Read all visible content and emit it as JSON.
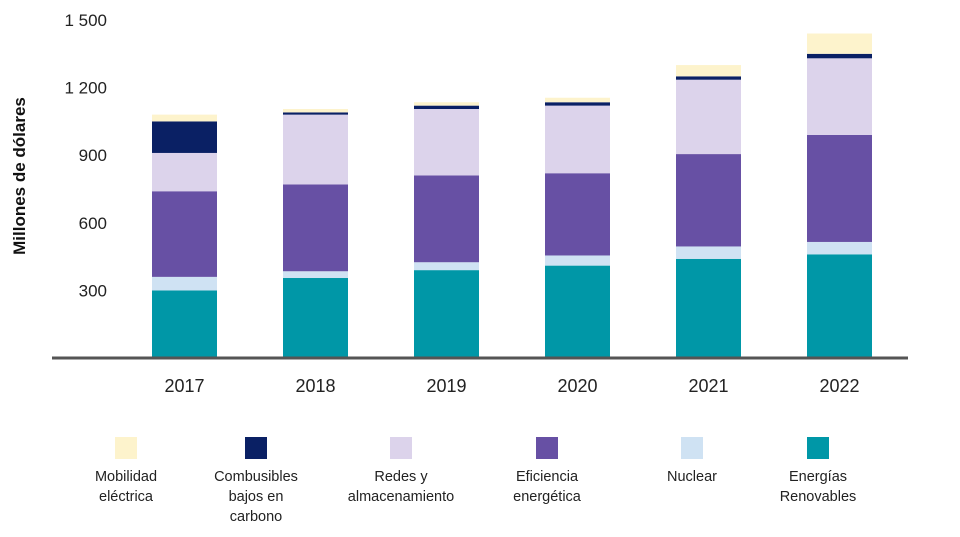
{
  "chart_data": {
    "type": "stacked-bar",
    "ylabel": "Millones de dólares",
    "xlabel": "",
    "ylim": [
      0,
      1500
    ],
    "yticks": [
      {
        "value": 300,
        "label": "300"
      },
      {
        "value": 600,
        "label": "600"
      },
      {
        "value": 900,
        "label": "900"
      },
      {
        "value": 1200,
        "label": "1 200"
      },
      {
        "value": 1500,
        "label": "1 500"
      }
    ],
    "categories": [
      "2017",
      "2018",
      "2019",
      "2020",
      "2021",
      "2022"
    ],
    "series": [
      {
        "name": "Energías Renovables",
        "legend_lines": [
          "Energías",
          "Renovables"
        ],
        "color": "#0097a7",
        "values": [
          300,
          355,
          390,
          410,
          440,
          460
        ]
      },
      {
        "name": "Nuclear",
        "legend_lines": [
          "Nuclear"
        ],
        "color": "#cfe2f3",
        "values": [
          60,
          30,
          35,
          45,
          55,
          55
        ]
      },
      {
        "name": "Eficiencia energética",
        "legend_lines": [
          "Eficiencia",
          "energética"
        ],
        "color": "#6750a4",
        "values": [
          380,
          385,
          385,
          365,
          410,
          475
        ]
      },
      {
        "name": "Redes y almacenamiento",
        "legend_lines": [
          "Redes y",
          "almacenamiento"
        ],
        "color": "#dcd3eb",
        "values": [
          170,
          310,
          295,
          300,
          330,
          340
        ]
      },
      {
        "name": "Combusibles bajos en carbono",
        "legend_lines": [
          "Combusibles",
          "bajos en",
          "carbono"
        ],
        "color": "#0a2064",
        "values": [
          140,
          10,
          15,
          15,
          15,
          20
        ]
      },
      {
        "name": "Mobilidad eléctrica",
        "legend_lines": [
          "Mobilidad",
          "eléctrica"
        ],
        "color": "#fdf3cc",
        "values": [
          30,
          15,
          15,
          20,
          50,
          90
        ]
      }
    ],
    "legend_order": [
      "Mobilidad eléctrica",
      "Combusibles bajos en carbono",
      "Redes y almacenamiento",
      "Eficiencia energética",
      "Nuclear",
      "Energías Renovables"
    ],
    "legend_position": "bottom",
    "grid": false
  }
}
